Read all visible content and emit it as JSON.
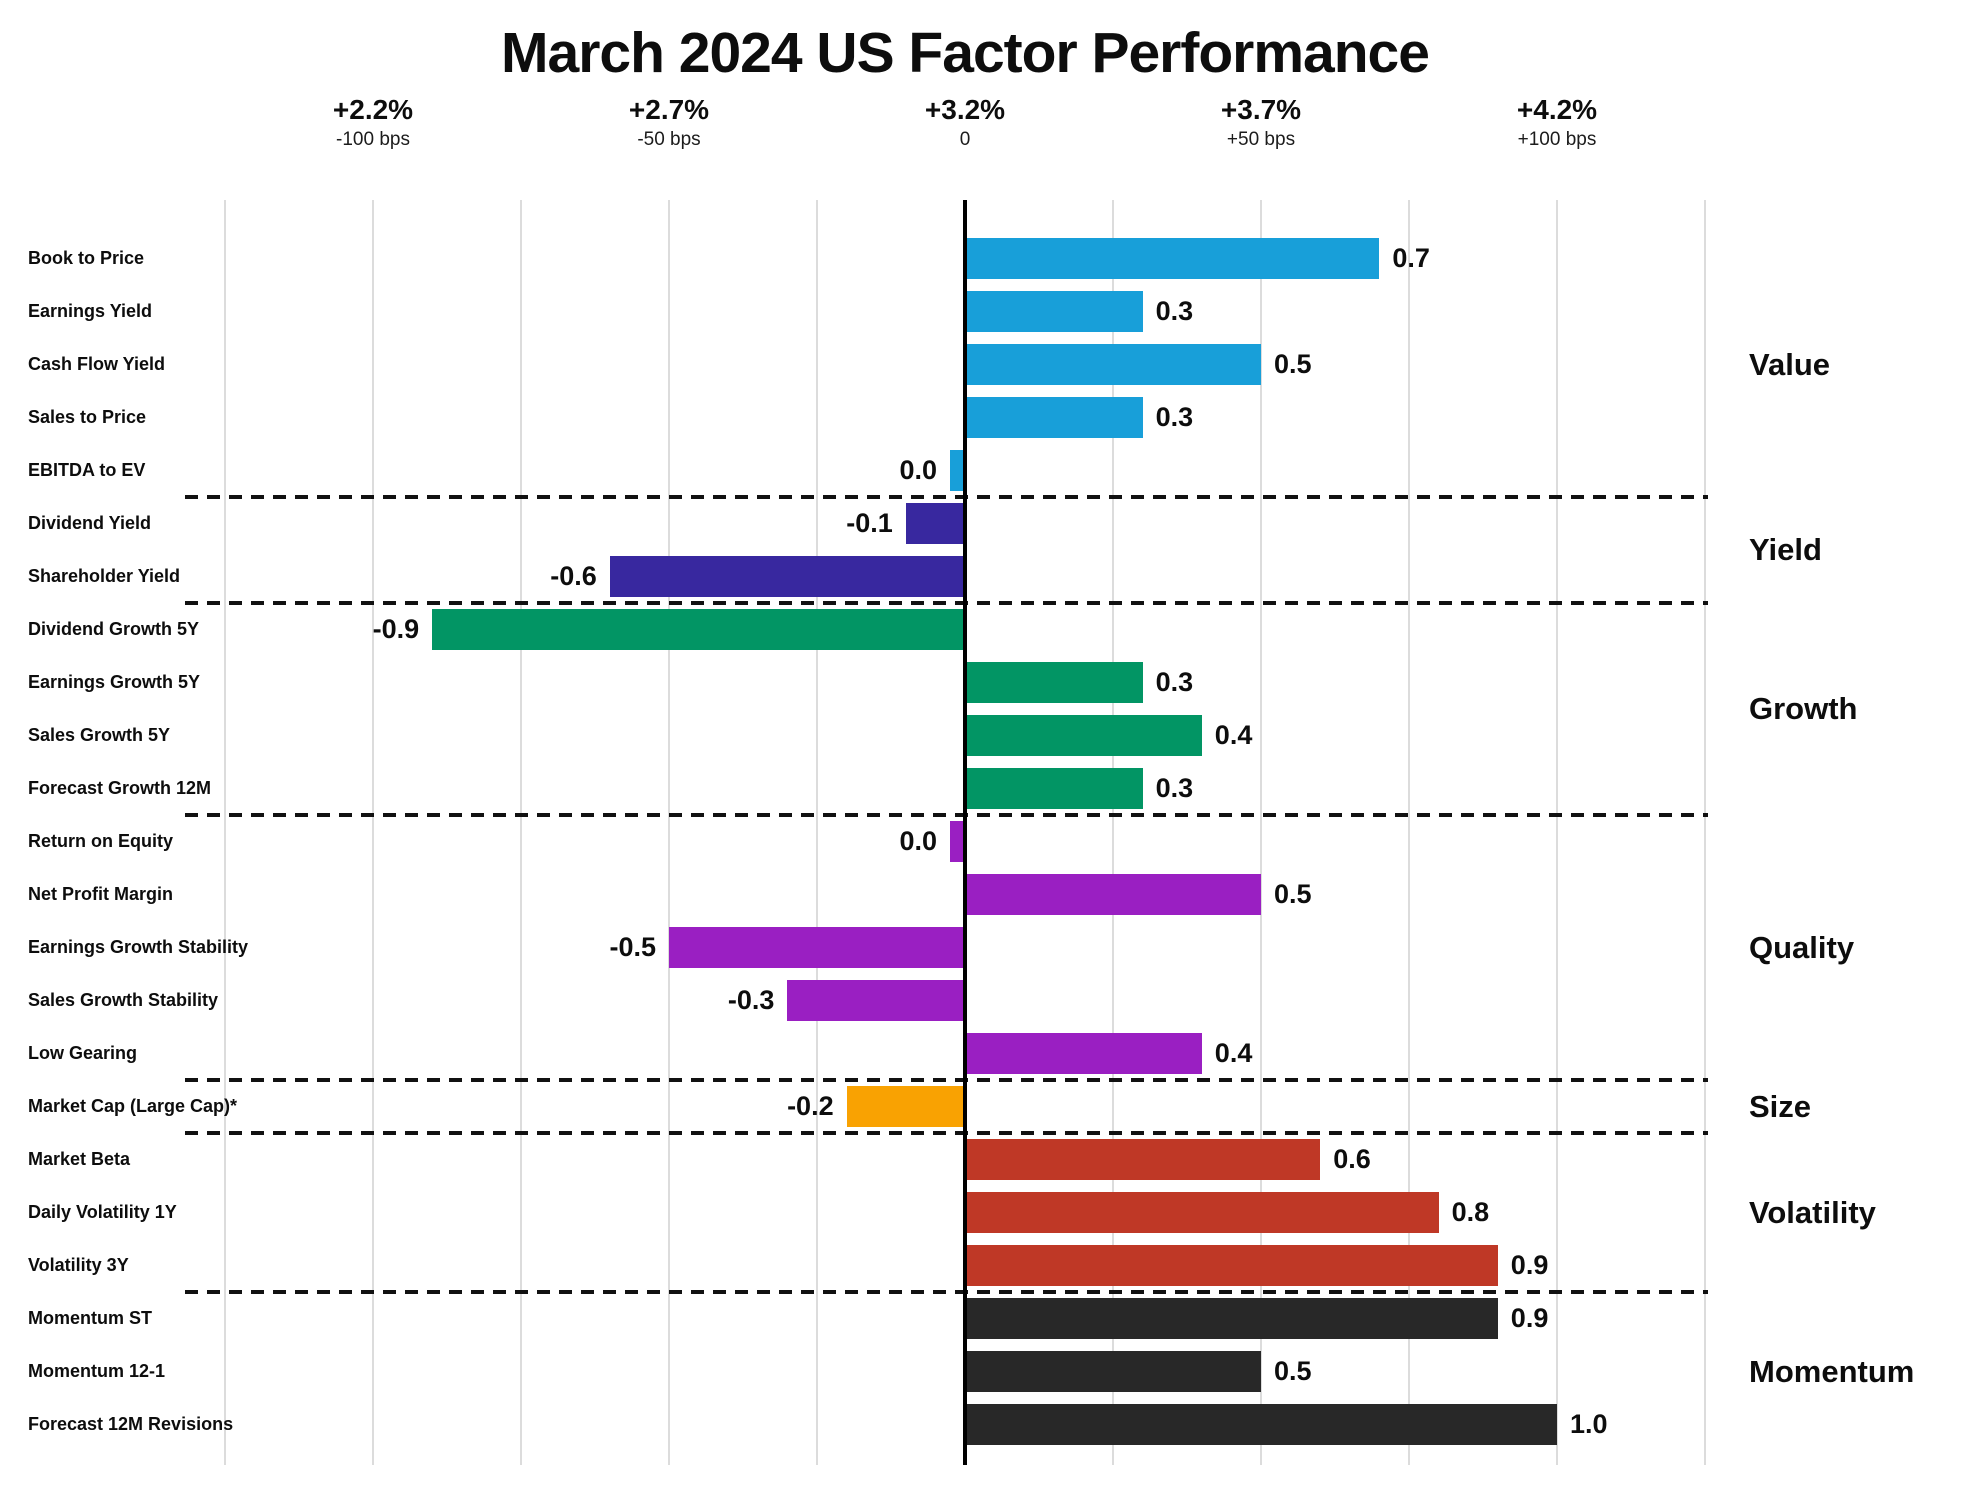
{
  "title": "March 2024 US Factor Performance",
  "chart_data": {
    "type": "bar",
    "orientation": "horizontal",
    "title": "March 2024 US Factor Performance",
    "value_unit": "percent_active_return",
    "legend_position": "right",
    "grid": "vertical, every 25 bps",
    "axis": {
      "range_bp": [
        -125,
        125
      ],
      "gridline_step_bp": 25,
      "zero_note": "0",
      "ticks": [
        {
          "bp": -100,
          "pct_label": "+2.2%",
          "bps_label": "-100 bps"
        },
        {
          "bp": -50,
          "pct_label": "+2.7%",
          "bps_label": "-50 bps"
        },
        {
          "bp": 0,
          "pct_label": "+3.2%",
          "bps_label": "0"
        },
        {
          "bp": 50,
          "pct_label": "+3.7%",
          "bps_label": "+50 bps"
        },
        {
          "bp": 100,
          "pct_label": "+4.2%",
          "bps_label": "+100 bps"
        }
      ]
    },
    "groups": [
      {
        "name": "Value",
        "color": "#189fd9",
        "factors": [
          {
            "label": "Book to Price",
            "value": 0.7,
            "display": "0.7"
          },
          {
            "label": "Earnings Yield",
            "value": 0.3,
            "display": "0.3"
          },
          {
            "label": "Cash Flow Yield",
            "value": 0.5,
            "display": "0.5"
          },
          {
            "label": "Sales to Price",
            "value": 0.3,
            "display": "0.3"
          },
          {
            "label": "EBITDA to EV",
            "value": 0.0,
            "display": "0.0"
          }
        ]
      },
      {
        "name": "Yield",
        "color": "#38289f",
        "factors": [
          {
            "label": "Dividend Yield",
            "value": -0.1,
            "display": "-0.1"
          },
          {
            "label": "Shareholder Yield",
            "value": -0.6,
            "display": "-0.6"
          }
        ]
      },
      {
        "name": "Growth",
        "color": "#029564",
        "factors": [
          {
            "label": "Dividend Growth 5Y",
            "value": -0.9,
            "display": "-0.9"
          },
          {
            "label": "Earnings Growth 5Y",
            "value": 0.3,
            "display": "0.3"
          },
          {
            "label": "Sales Growth 5Y",
            "value": 0.4,
            "display": "0.4"
          },
          {
            "label": "Forecast Growth 12M",
            "value": 0.3,
            "display": "0.3"
          }
        ]
      },
      {
        "name": "Quality",
        "color": "#9a1fc2",
        "factors": [
          {
            "label": "Return on Equity",
            "value": 0.0,
            "display": "0.0"
          },
          {
            "label": "Net Profit Margin",
            "value": 0.5,
            "display": "0.5"
          },
          {
            "label": "Earnings Growth Stability",
            "value": -0.5,
            "display": "-0.5"
          },
          {
            "label": "Sales Growth Stability",
            "value": -0.3,
            "display": "-0.3"
          },
          {
            "label": "Low Gearing",
            "value": 0.4,
            "display": "0.4"
          }
        ]
      },
      {
        "name": "Size",
        "color": "#f9a202",
        "factors": [
          {
            "label": "Market Cap (Large Cap)*",
            "value": -0.2,
            "display": "-0.2"
          }
        ]
      },
      {
        "name": "Volatility",
        "color": "#bf3826",
        "factors": [
          {
            "label": "Market Beta",
            "value": 0.6,
            "display": "0.6"
          },
          {
            "label": "Daily Volatility 1Y",
            "value": 0.8,
            "display": "0.8"
          },
          {
            "label": "Volatility 3Y",
            "value": 0.9,
            "display": "0.9"
          }
        ]
      },
      {
        "name": "Momentum",
        "color": "#282828",
        "factors": [
          {
            "label": "Momentum ST",
            "value": 0.9,
            "display": "0.9"
          },
          {
            "label": "Momentum 12-1",
            "value": 0.5,
            "display": "0.5"
          },
          {
            "label": "Forecast 12M Revisions",
            "value": 1.0,
            "display": "1.0"
          }
        ]
      }
    ]
  }
}
